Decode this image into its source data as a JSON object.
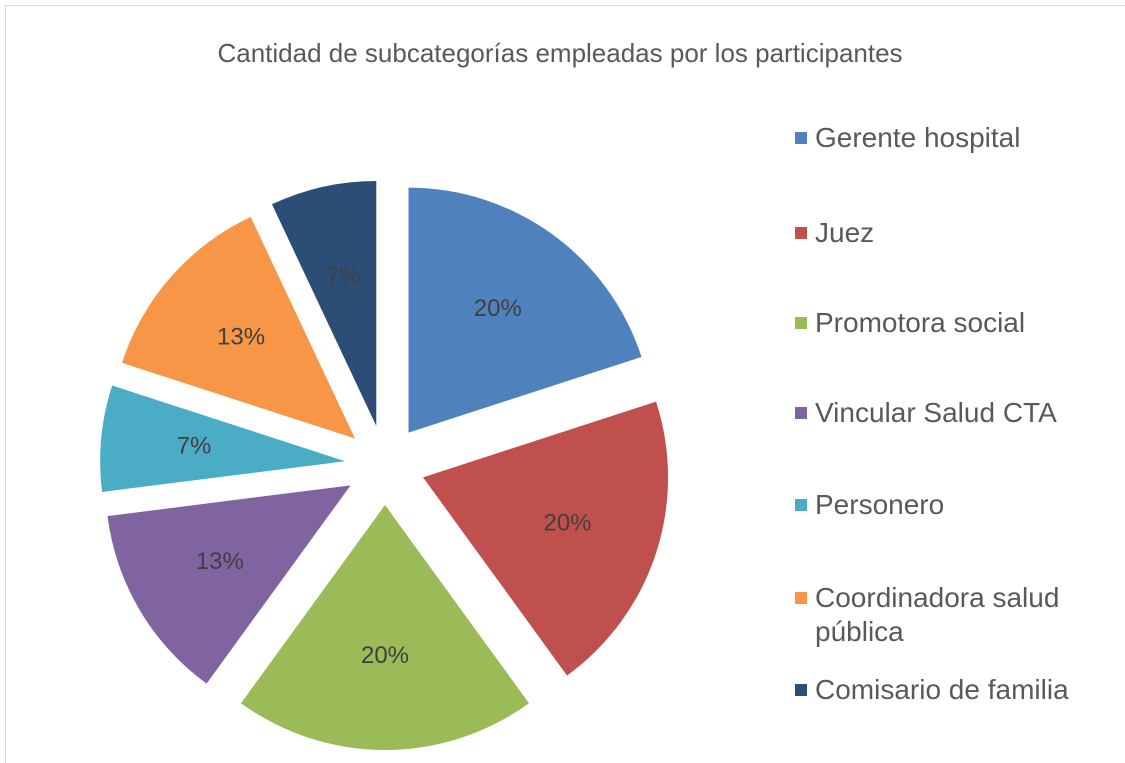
{
  "chart_data": {
    "type": "pie",
    "title": "Cantidad de subcategorías empleadas por los participantes",
    "categories": [
      "Gerente hospital",
      "Juez",
      "Promotora social",
      "Vincular Salud CTA",
      "Personero",
      "Coordinadora salud pública",
      "Comisario de familia"
    ],
    "values": [
      20,
      20,
      20,
      13,
      7,
      13,
      7
    ],
    "value_labels": [
      "20%",
      "20%",
      "20%",
      "13%",
      "7%",
      "13%",
      "7%"
    ],
    "colors": [
      "#4f81bd",
      "#c0504d",
      "#9bbb59",
      "#8064a2",
      "#4bacc6",
      "#f79646",
      "#2c4d75"
    ],
    "legend": "right"
  }
}
